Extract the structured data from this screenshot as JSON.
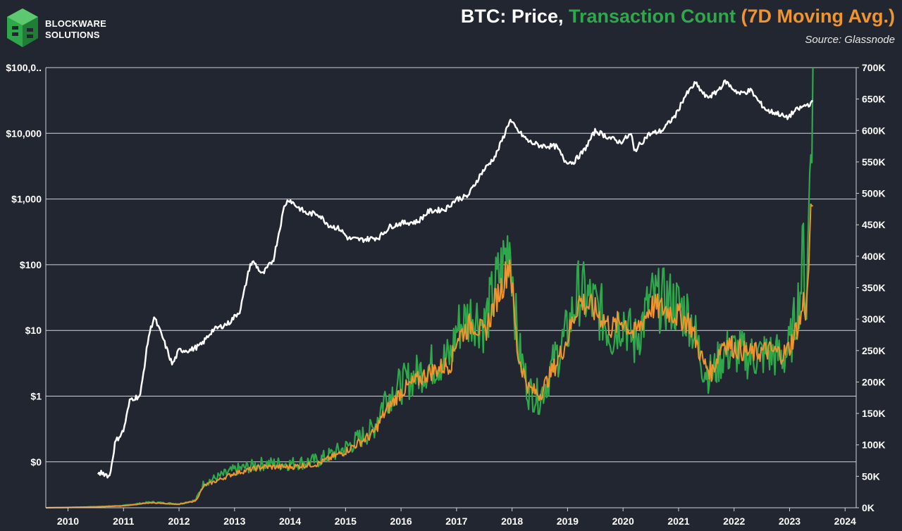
{
  "brand": {
    "line1": "BLOCKWARE",
    "line2": "SOLUTIONS",
    "logo_icon": "blockware-cube-logo-icon",
    "logo_color": "#2ea84a"
  },
  "header": {
    "title_part1": "BTC: Price, ",
    "title_part2": "Transaction Count ",
    "title_part3": "(7D Moving Avg.)",
    "source": "Source: Glassnode"
  },
  "colors": {
    "background": "#222630",
    "price": "#ffffff",
    "tx_count": "#2ea84a",
    "tx_ma": "#f0952e",
    "grid": "#cfd3da"
  },
  "chart_data": {
    "type": "line",
    "title": "BTC: Price, Transaction Count (7D Moving Avg.)",
    "source": "Source: Glassnode",
    "grid": true,
    "x_ticks": [
      "2010",
      "2011",
      "2012",
      "2013",
      "2014",
      "2015",
      "2016",
      "2017",
      "2018",
      "2019",
      "2020",
      "2021",
      "2022",
      "2023",
      "2024"
    ],
    "xlim": [
      2009.6,
      2024.2
    ],
    "y_left": {
      "scale": "log",
      "ticks": [
        "$100,0..",
        "$10,000",
        "$1,000",
        "$100",
        "$10",
        "$1",
        "$0"
      ],
      "tick_values": [
        100000,
        10000,
        1000,
        100,
        10,
        1,
        0.1
      ],
      "ylim": [
        0.02,
        100000
      ]
    },
    "y_right": {
      "scale": "linear",
      "ticks": [
        "700K",
        "650K",
        "600K",
        "550K",
        "500K",
        "450K",
        "400K",
        "350K",
        "300K",
        "250K",
        "200K",
        "150K",
        "100K",
        "50K",
        "0K"
      ],
      "tick_values": [
        700000,
        650000,
        600000,
        550000,
        500000,
        450000,
        400000,
        350000,
        300000,
        250000,
        200000,
        150000,
        100000,
        50000,
        0
      ],
      "ylim": [
        0,
        700000
      ]
    },
    "series": [
      {
        "axis": "left",
        "color": "#ffffff",
        "x": [
          2010.54,
          2010.6,
          2010.75,
          2010.85,
          2011.0,
          2011.12,
          2011.3,
          2011.45,
          2011.55,
          2011.7,
          2011.88,
          2012.0,
          2012.2,
          2012.4,
          2012.6,
          2012.9,
          2013.1,
          2013.28,
          2013.35,
          2013.5,
          2013.7,
          2013.9,
          2013.98,
          2014.1,
          2014.3,
          2014.5,
          2014.7,
          2014.9,
          2015.05,
          2015.3,
          2015.6,
          2015.8,
          2016.0,
          2016.3,
          2016.5,
          2016.8,
          2017.0,
          2017.2,
          2017.45,
          2017.7,
          2017.85,
          2017.96,
          2018.1,
          2018.3,
          2018.5,
          2018.8,
          2018.95,
          2019.1,
          2019.3,
          2019.5,
          2019.7,
          2019.95,
          2020.15,
          2020.2,
          2020.45,
          2020.7,
          2020.95,
          2021.1,
          2021.3,
          2021.5,
          2021.65,
          2021.85,
          2021.95,
          2022.1,
          2022.3,
          2022.45,
          2022.6,
          2022.8,
          2022.95,
          2023.1,
          2023.3,
          2023.42
        ],
        "y": [
          0.06,
          0.07,
          0.06,
          0.2,
          0.3,
          0.9,
          1.0,
          8,
          16,
          8,
          3,
          5,
          5,
          6,
          10,
          13,
          20,
          100,
          110,
          70,
          120,
          800,
          1000,
          800,
          600,
          600,
          400,
          350,
          250,
          240,
          260,
          380,
          430,
          450,
          650,
          700,
          1000,
          1100,
          2500,
          4500,
          9000,
          16000,
          11000,
          7500,
          6500,
          6300,
          3800,
          3600,
          5500,
          11000,
          9000,
          7300,
          9800,
          5300,
          9500,
          11000,
          19000,
          35000,
          58000,
          35000,
          40000,
          62000,
          50000,
          40000,
          45000,
          30000,
          22000,
          20000,
          17000,
          22000,
          27000,
          29000
        ]
      },
      {
        "axis": "right",
        "color": "#2ea84a",
        "name": "Transaction Count",
        "x": [
          2009.6,
          2010.0,
          2010.5,
          2011.0,
          2011.5,
          2012.0,
          2012.3,
          2012.45,
          2012.6,
          2013.0,
          2013.5,
          2014.0,
          2014.5,
          2015.0,
          2015.5,
          2015.7,
          2016.0,
          2016.5,
          2016.9,
          2017.0,
          2017.3,
          2017.5,
          2017.7,
          2017.85,
          2017.96,
          2018.1,
          2018.3,
          2018.5,
          2018.8,
          2019.0,
          2019.2,
          2019.4,
          2019.6,
          2019.8,
          2020.0,
          2020.2,
          2020.5,
          2020.8,
          2021.0,
          2021.2,
          2021.45,
          2021.6,
          2021.8,
          2022.0,
          2022.3,
          2022.6,
          2022.9,
          2023.0,
          2023.1,
          2023.2,
          2023.25,
          2023.3,
          2023.38,
          2023.42
        ],
        "y": [
          0,
          500,
          1500,
          3500,
          9000,
          6000,
          12000,
          40000,
          45000,
          60000,
          70000,
          70000,
          75000,
          95000,
          125000,
          175000,
          195000,
          225000,
          240000,
          285000,
          310000,
          290000,
          350000,
          390000,
          430000,
          260000,
          185000,
          175000,
          240000,
          280000,
          345000,
          330000,
          310000,
          275000,
          305000,
          260000,
          330000,
          330000,
          320000,
          305000,
          225000,
          210000,
          245000,
          250000,
          240000,
          245000,
          240000,
          255000,
          300000,
          350000,
          420000,
          300000,
          600000,
          680000
        ]
      },
      {
        "axis": "right",
        "color": "#f0952e",
        "name": "(7D Moving Avg.)",
        "x": [
          2009.6,
          2010.0,
          2010.5,
          2011.0,
          2011.5,
          2012.0,
          2012.3,
          2012.45,
          2012.6,
          2013.0,
          2013.5,
          2014.0,
          2014.5,
          2015.0,
          2015.5,
          2015.7,
          2016.0,
          2016.5,
          2016.9,
          2017.0,
          2017.3,
          2017.5,
          2017.7,
          2017.85,
          2017.96,
          2018.1,
          2018.3,
          2018.5,
          2018.8,
          2019.0,
          2019.2,
          2019.4,
          2019.6,
          2019.8,
          2020.0,
          2020.2,
          2020.5,
          2020.8,
          2021.0,
          2021.2,
          2021.45,
          2021.6,
          2021.8,
          2022.0,
          2022.3,
          2022.6,
          2022.9,
          2023.0,
          2023.1,
          2023.2,
          2023.25,
          2023.3,
          2023.38,
          2023.42
        ],
        "y": [
          0,
          500,
          1500,
          3000,
          8000,
          5500,
          11000,
          35000,
          40000,
          55000,
          65000,
          65000,
          70000,
          90000,
          118000,
          150000,
          185000,
          215000,
          230000,
          270000,
          295000,
          275000,
          330000,
          360000,
          395000,
          245000,
          190000,
          180000,
          230000,
          270000,
          330000,
          320000,
          305000,
          285000,
          300000,
          275000,
          320000,
          315000,
          305000,
          295000,
          230000,
          215000,
          265000,
          255000,
          245000,
          250000,
          245000,
          255000,
          280000,
          300000,
          330000,
          310000,
          450000,
          510000
        ]
      }
    ]
  }
}
